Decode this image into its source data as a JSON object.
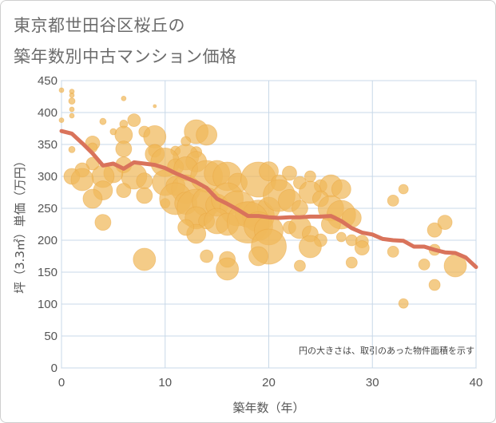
{
  "title_line1": "東京都世田谷区桜丘の",
  "title_line2": "築年数別中古マンション価格",
  "chart_data": {
    "type": "scatter",
    "xlabel": "築年数（年）",
    "ylabel": "坪（3.3㎡）単価（万円）",
    "xlim": [
      0,
      40
    ],
    "ylim": [
      0,
      450
    ],
    "xticks": [
      "0",
      "10",
      "20",
      "30",
      "40"
    ],
    "yticks": [
      "0",
      "50",
      "100",
      "150",
      "200",
      "250",
      "300",
      "350",
      "400",
      "450"
    ],
    "grid": true,
    "annotation": "円の大きさは、取引のあった物件面積を示す",
    "colors": {
      "bubble": "#f0b85a",
      "line": "#d9735b",
      "grid": "#c8d8e8"
    },
    "trend_line": {
      "x": [
        0,
        1,
        2,
        3,
        4,
        5,
        6,
        7,
        8,
        9,
        10,
        11,
        12,
        13,
        14,
        15,
        16,
        17,
        18,
        19,
        20,
        21,
        22,
        23,
        24,
        25,
        26,
        27,
        28,
        29,
        30,
        31,
        32,
        33,
        34,
        35,
        36,
        37,
        38,
        39,
        40
      ],
      "y": [
        371,
        367,
        352,
        336,
        317,
        320,
        312,
        322,
        320,
        318,
        313,
        305,
        298,
        291,
        282,
        265,
        257,
        248,
        238,
        238,
        236,
        235,
        236,
        236,
        237,
        237,
        238,
        230,
        219,
        212,
        209,
        202,
        200,
        199,
        190,
        190,
        185,
        181,
        180,
        173,
        158
      ]
    },
    "points": [
      {
        "x": 0,
        "y": 435,
        "s": 3
      },
      {
        "x": 0,
        "y": 388,
        "s": 3
      },
      {
        "x": 1,
        "y": 433,
        "s": 3
      },
      {
        "x": 1,
        "y": 427,
        "s": 3
      },
      {
        "x": 1,
        "y": 418,
        "s": 4
      },
      {
        "x": 1,
        "y": 405,
        "s": 3
      },
      {
        "x": 1,
        "y": 395,
        "s": 3
      },
      {
        "x": 6,
        "y": 422,
        "s": 3
      },
      {
        "x": 9,
        "y": 410,
        "s": 2
      },
      {
        "x": 4,
        "y": 386,
        "s": 4
      },
      {
        "x": 7,
        "y": 388,
        "s": 8
      },
      {
        "x": 6,
        "y": 382,
        "s": 5
      },
      {
        "x": 5,
        "y": 370,
        "s": 4
      },
      {
        "x": 8,
        "y": 370,
        "s": 7
      },
      {
        "x": 6,
        "y": 365,
        "s": 11
      },
      {
        "x": 3,
        "y": 352,
        "s": 9
      },
      {
        "x": 3,
        "y": 345,
        "s": 6
      },
      {
        "x": 6,
        "y": 343,
        "s": 10
      },
      {
        "x": 1,
        "y": 342,
        "s": 4
      },
      {
        "x": 9,
        "y": 362,
        "s": 14
      },
      {
        "x": 9,
        "y": 340,
        "s": 8
      },
      {
        "x": 9,
        "y": 335,
        "s": 12
      },
      {
        "x": 13,
        "y": 370,
        "s": 15
      },
      {
        "x": 14,
        "y": 365,
        "s": 13
      },
      {
        "x": 12,
        "y": 355,
        "s": 6
      },
      {
        "x": 11,
        "y": 340,
        "s": 6
      },
      {
        "x": 13,
        "y": 338,
        "s": 7
      },
      {
        "x": 12,
        "y": 330,
        "s": 16
      },
      {
        "x": 13,
        "y": 323,
        "s": 13
      },
      {
        "x": 10,
        "y": 322,
        "s": 18
      },
      {
        "x": 11,
        "y": 315,
        "s": 10
      },
      {
        "x": 12,
        "y": 312,
        "s": 15
      },
      {
        "x": 6,
        "y": 318,
        "s": 10
      },
      {
        "x": 7,
        "y": 300,
        "s": 16
      },
      {
        "x": 8,
        "y": 293,
        "s": 10
      },
      {
        "x": 5,
        "y": 305,
        "s": 12
      },
      {
        "x": 4,
        "y": 300,
        "s": 14
      },
      {
        "x": 3,
        "y": 320,
        "s": 8
      },
      {
        "x": 2,
        "y": 310,
        "s": 9
      },
      {
        "x": 1,
        "y": 300,
        "s": 10
      },
      {
        "x": 2,
        "y": 295,
        "s": 14
      },
      {
        "x": 4,
        "y": 278,
        "s": 12
      },
      {
        "x": 3,
        "y": 265,
        "s": 12
      },
      {
        "x": 6,
        "y": 278,
        "s": 9
      },
      {
        "x": 8,
        "y": 270,
        "s": 10
      },
      {
        "x": 10,
        "y": 290,
        "s": 16
      },
      {
        "x": 11,
        "y": 285,
        "s": 12
      },
      {
        "x": 12,
        "y": 280,
        "s": 18
      },
      {
        "x": 14,
        "y": 300,
        "s": 20
      },
      {
        "x": 15,
        "y": 305,
        "s": 16
      },
      {
        "x": 16,
        "y": 300,
        "s": 18
      },
      {
        "x": 17,
        "y": 290,
        "s": 12
      },
      {
        "x": 19,
        "y": 295,
        "s": 22
      },
      {
        "x": 20,
        "y": 308,
        "s": 12
      },
      {
        "x": 21,
        "y": 290,
        "s": 10
      },
      {
        "x": 22,
        "y": 305,
        "s": 9
      },
      {
        "x": 23,
        "y": 290,
        "s": 8
      },
      {
        "x": 24,
        "y": 300,
        "s": 7
      },
      {
        "x": 25,
        "y": 285,
        "s": 8
      },
      {
        "x": 26,
        "y": 285,
        "s": 14
      },
      {
        "x": 27,
        "y": 280,
        "s": 12
      },
      {
        "x": 10,
        "y": 258,
        "s": 6
      },
      {
        "x": 11,
        "y": 265,
        "s": 20
      },
      {
        "x": 12,
        "y": 258,
        "s": 14
      },
      {
        "x": 13,
        "y": 250,
        "s": 24
      },
      {
        "x": 14,
        "y": 260,
        "s": 18
      },
      {
        "x": 15,
        "y": 255,
        "s": 14
      },
      {
        "x": 16,
        "y": 265,
        "s": 20
      },
      {
        "x": 17,
        "y": 250,
        "s": 22
      },
      {
        "x": 18,
        "y": 240,
        "s": 16
      },
      {
        "x": 19,
        "y": 238,
        "s": 20
      },
      {
        "x": 20,
        "y": 250,
        "s": 14
      },
      {
        "x": 21,
        "y": 270,
        "s": 20
      },
      {
        "x": 22,
        "y": 262,
        "s": 14
      },
      {
        "x": 23,
        "y": 250,
        "s": 10
      },
      {
        "x": 24,
        "y": 275,
        "s": 14
      },
      {
        "x": 25,
        "y": 265,
        "s": 10
      },
      {
        "x": 26,
        "y": 250,
        "s": 16
      },
      {
        "x": 27,
        "y": 240,
        "s": 18
      },
      {
        "x": 28,
        "y": 235,
        "s": 12
      },
      {
        "x": 13,
        "y": 235,
        "s": 14
      },
      {
        "x": 14,
        "y": 230,
        "s": 10
      },
      {
        "x": 15,
        "y": 230,
        "s": 16
      },
      {
        "x": 16,
        "y": 225,
        "s": 14
      },
      {
        "x": 18,
        "y": 228,
        "s": 26
      },
      {
        "x": 19,
        "y": 222,
        "s": 18
      },
      {
        "x": 20,
        "y": 215,
        "s": 18
      },
      {
        "x": 22,
        "y": 220,
        "s": 8
      },
      {
        "x": 23,
        "y": 220,
        "s": 14
      },
      {
        "x": 24,
        "y": 210,
        "s": 10
      },
      {
        "x": 25,
        "y": 200,
        "s": 8
      },
      {
        "x": 26,
        "y": 225,
        "s": 12
      },
      {
        "x": 27,
        "y": 205,
        "s": 6
      },
      {
        "x": 28,
        "y": 200,
        "s": 7
      },
      {
        "x": 29,
        "y": 198,
        "s": 8
      },
      {
        "x": 29,
        "y": 188,
        "s": 9
      },
      {
        "x": 20,
        "y": 190,
        "s": 22
      },
      {
        "x": 19,
        "y": 175,
        "s": 12
      },
      {
        "x": 24,
        "y": 190,
        "s": 14
      },
      {
        "x": 16,
        "y": 170,
        "s": 10
      },
      {
        "x": 16,
        "y": 155,
        "s": 14
      },
      {
        "x": 14,
        "y": 175,
        "s": 8
      },
      {
        "x": 8,
        "y": 170,
        "s": 14
      },
      {
        "x": 23,
        "y": 160,
        "s": 7
      },
      {
        "x": 28,
        "y": 165,
        "s": 7
      },
      {
        "x": 4,
        "y": 228,
        "s": 10
      },
      {
        "x": 13,
        "y": 210,
        "s": 12
      },
      {
        "x": 12,
        "y": 220,
        "s": 10
      },
      {
        "x": 32,
        "y": 262,
        "s": 7
      },
      {
        "x": 33,
        "y": 280,
        "s": 6
      },
      {
        "x": 32,
        "y": 182,
        "s": 7
      },
      {
        "x": 35,
        "y": 162,
        "s": 7
      },
      {
        "x": 36,
        "y": 216,
        "s": 9
      },
      {
        "x": 36,
        "y": 185,
        "s": 7
      },
      {
        "x": 37,
        "y": 228,
        "s": 9
      },
      {
        "x": 38,
        "y": 160,
        "s": 14
      },
      {
        "x": 36,
        "y": 130,
        "s": 7
      },
      {
        "x": 33,
        "y": 101,
        "s": 6
      }
    ]
  }
}
